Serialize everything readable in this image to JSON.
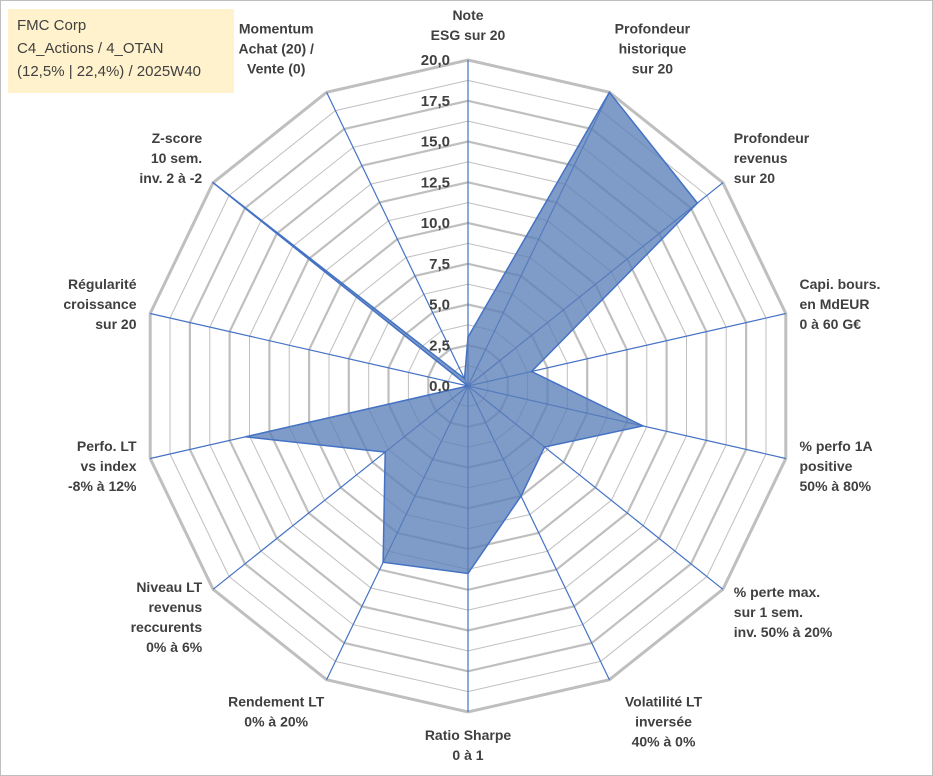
{
  "info_box": {
    "line1": "FMC Corp",
    "line2": "C4_Actions / 4_OTAN",
    "line3": "(12,5% | 22,4%) / 2025W40"
  },
  "colors": {
    "fill": "#5b7fb8",
    "fill_opacity": "0.78",
    "stroke": "#4472c4",
    "grid": "#bfbfbf",
    "spoke": "#4472c4",
    "text": "#404040",
    "info_bg": "#fff2cc"
  },
  "chart_data": {
    "type": "radar",
    "title": "",
    "r_range": [
      0,
      20
    ],
    "r_ticks": [
      "0,0",
      "2,5",
      "5,0",
      "7,5",
      "10,0",
      "12,5",
      "15,0",
      "17,5",
      "20,0"
    ],
    "grid_levels": 16,
    "axes": [
      {
        "lines": [
          "Note",
          "ESG sur 20"
        ]
      },
      {
        "lines": [
          "Profondeur",
          "historique",
          "sur 20"
        ]
      },
      {
        "lines": [
          "Profondeur",
          "revenus",
          "sur 20"
        ]
      },
      {
        "lines": [
          "Capi. bours.",
          "en MdEUR",
          "0 à 60 G€"
        ]
      },
      {
        "lines": [
          "% perfo 1A",
          "positive",
          "50% à 80%"
        ]
      },
      {
        "lines": [
          "% perte max.",
          "sur 1 sem.",
          "inv. 50% à 20%"
        ]
      },
      {
        "lines": [
          "Volatilité LT",
          "inversée",
          "40% à 0%"
        ]
      },
      {
        "lines": [
          "Ratio Sharpe",
          "0 à 1"
        ]
      },
      {
        "lines": [
          "Rendement LT",
          "0% à 20%"
        ]
      },
      {
        "lines": [
          "Niveau LT",
          "revenus",
          "reccurents",
          "0% à 6%"
        ]
      },
      {
        "lines": [
          "Perfo. LT",
          "vs index",
          "-8% à 12%"
        ]
      },
      {
        "lines": [
          "Régularité",
          "croissance",
          "sur 20"
        ]
      },
      {
        "lines": [
          "Z-score",
          "10 sem.",
          "inv. 2 à -2"
        ]
      },
      {
        "lines": [
          "Momentum",
          "Achat (20) /",
          "Vente (0)"
        ]
      }
    ],
    "series": [
      {
        "name": "FMC Corp",
        "values": [
          3.0,
          20.0,
          18.0,
          4.0,
          11.0,
          6.0,
          7.5,
          11.5,
          12.0,
          6.5,
          14.0,
          0.0,
          20.0,
          0.5
        ]
      }
    ]
  }
}
